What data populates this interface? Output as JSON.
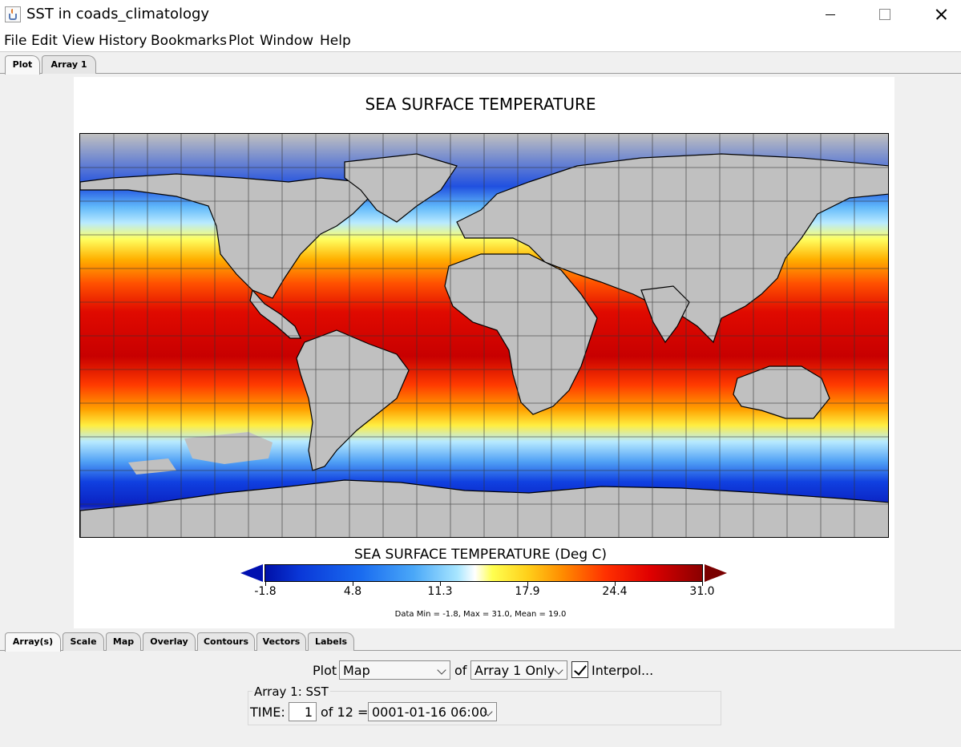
{
  "window": {
    "title": "SST in coads_climatology"
  },
  "menu": [
    "File",
    "Edit",
    "View",
    "History",
    "Bookmarks",
    "Plot",
    "Window",
    "Help"
  ],
  "top_tabs": [
    {
      "label": "Plot",
      "active": true
    },
    {
      "label": "Array 1",
      "active": false
    }
  ],
  "plot": {
    "title": "SEA SURFACE TEMPERATURE",
    "colorbar_title": "SEA SURFACE TEMPERATURE (Deg C)",
    "colorbar_ticks": [
      "-1.8",
      "4.8",
      "11.3",
      "17.9",
      "24.4",
      "31.0"
    ],
    "stats": "Data Min = -1.8, Max = 31.0, Mean = 19.0",
    "colors": {
      "land": "#c0c0c0",
      "cold": "#0010a8",
      "hot": "#8a0000"
    }
  },
  "bottom_tabs": [
    {
      "label": "Array(s)",
      "active": true
    },
    {
      "label": "Scale",
      "active": false
    },
    {
      "label": "Map",
      "active": false
    },
    {
      "label": "Overlay",
      "active": false
    },
    {
      "label": "Contours",
      "active": false
    },
    {
      "label": "Vectors",
      "active": false
    },
    {
      "label": "Labels",
      "active": false
    }
  ],
  "controls": {
    "plot_label": "Plot",
    "plot_type": "Map",
    "of_label": "of",
    "array_select": "Array 1 Only",
    "interpolate_label": "Interpol...",
    "interpolate_checked": true,
    "group_title": "Array 1: SST",
    "time_label": "TIME:",
    "time_index": "1",
    "time_of": "of 12 =",
    "time_value": "0001-01-16 06:00"
  }
}
